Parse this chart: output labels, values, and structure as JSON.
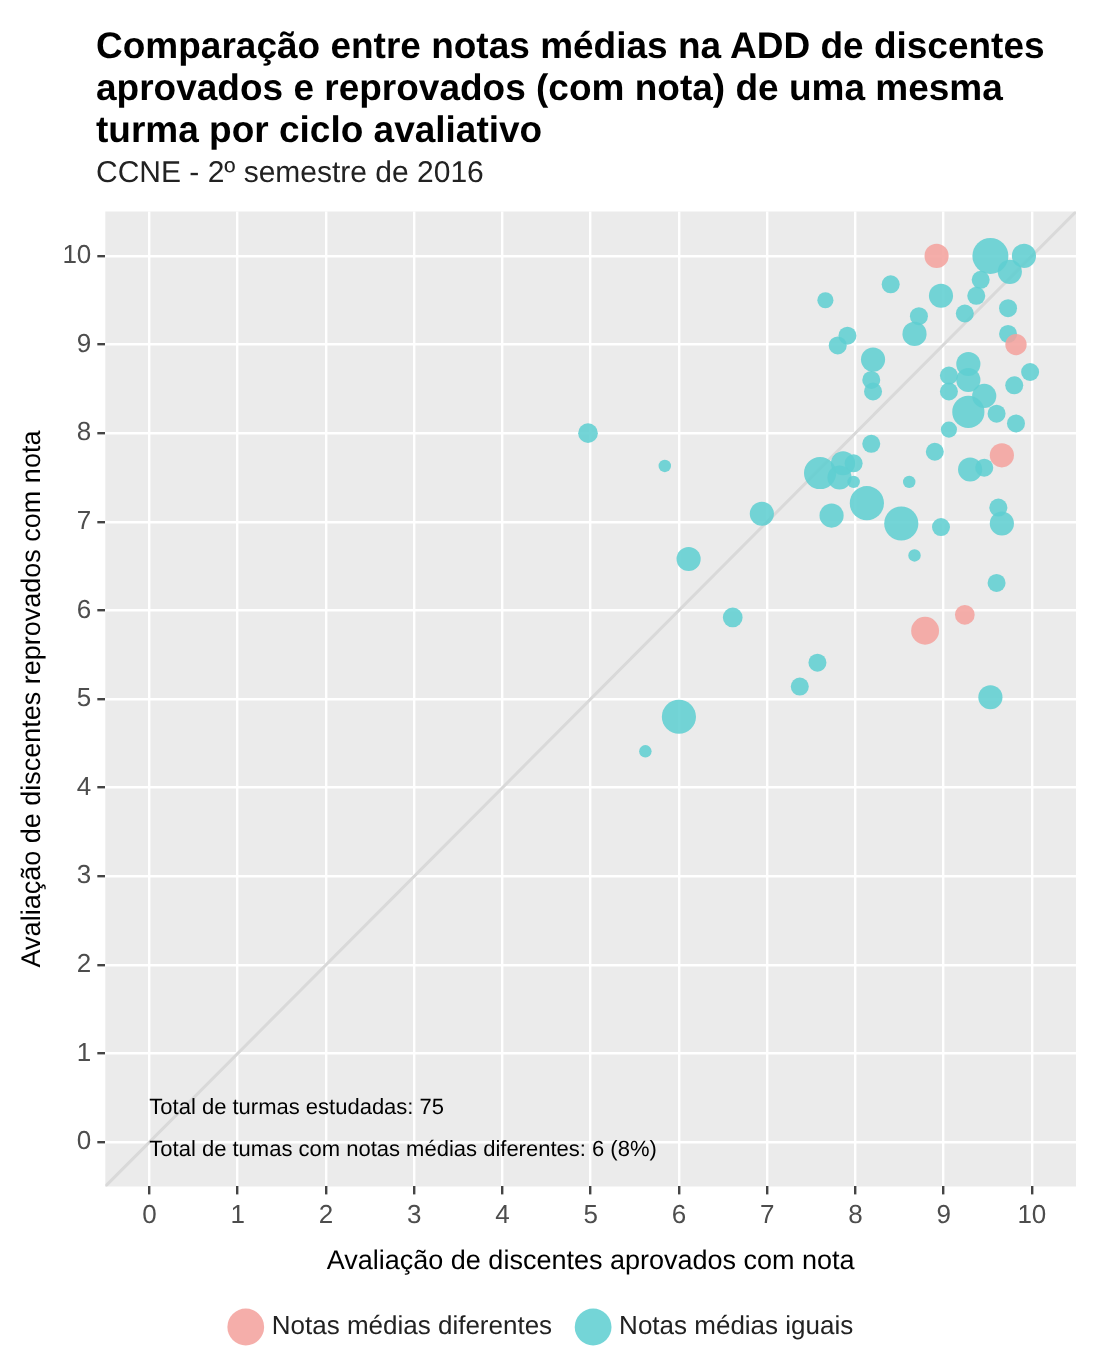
{
  "chart_data": {
    "type": "bubble",
    "title": "Comparação entre notas médias na ADD de discentes aprovados e reprovados (com nota) de uma mesma turma por ciclo avaliativo",
    "subtitle": "CCNE - 2º semestre de 2016",
    "xlabel": "Avaliação de discentes aprovados com nota",
    "ylabel": "Avaliação de discentes reprovados com nota",
    "xlim": [
      -0.5,
      10.5
    ],
    "ylim": [
      -0.5,
      10.5
    ],
    "xticks": [
      0,
      1,
      2,
      3,
      4,
      5,
      6,
      7,
      8,
      9,
      10
    ],
    "yticks": [
      0,
      1,
      2,
      3,
      4,
      5,
      6,
      7,
      8,
      9,
      10
    ],
    "grid": true,
    "legend": "bottom",
    "marker": "circle",
    "annotations": [
      "Total de turmas estudadas: 75",
      "Total de tumas com notas médias diferentes: 6 (8%)"
    ],
    "series": [
      {
        "type": "line",
        "marker": "none",
        "color": "#d9d9d9",
        "x": [
          -0.5,
          10.5
        ],
        "values": [
          -0.5,
          10.5
        ]
      },
      {
        "name": "Notas médias diferentes",
        "color": "#f4a29d",
        "x": [
          8.92,
          9.82,
          9.66,
          8.79,
          9.24
        ],
        "values": [
          10.0,
          9.0,
          7.75,
          5.77,
          5.95
        ],
        "sizes": [
          0.45,
          0.35,
          0.45,
          0.6,
          0.3
        ]
      },
      {
        "name": "Notas médias iguais",
        "color": "#5fcfd1",
        "x": [
          9.53,
          9.91,
          9.75,
          9.42,
          8.97,
          9.37,
          8.4,
          7.66,
          8.72,
          9.24,
          9.73,
          8.67,
          7.91,
          7.8,
          9.73,
          9.98,
          9.28,
          9.28,
          9.06,
          9.06,
          9.8,
          8.2,
          8.18,
          8.2,
          9.46,
          9.28,
          9.6,
          9.82,
          9.06,
          8.18,
          5.84,
          7.6,
          7.86,
          7.98,
          7.82,
          7.98,
          8.9,
          9.3,
          9.46,
          8.61,
          8.13,
          6.94,
          7.73,
          8.52,
          8.97,
          9.66,
          9.62,
          8.67,
          6.11,
          9.6,
          6.61,
          7.57,
          7.37,
          9.53,
          6.0,
          5.62,
          4.97
        ],
        "values": [
          10.0,
          10.0,
          9.82,
          9.73,
          9.55,
          9.55,
          9.68,
          9.5,
          9.32,
          9.35,
          9.41,
          9.12,
          9.1,
          8.99,
          9.12,
          8.69,
          8.78,
          8.6,
          8.65,
          8.47,
          8.54,
          8.83,
          8.6,
          8.47,
          8.42,
          8.24,
          8.22,
          8.11,
          8.04,
          7.88,
          7.63,
          7.55,
          7.66,
          7.66,
          7.5,
          7.45,
          7.79,
          7.59,
          7.61,
          7.45,
          7.21,
          7.09,
          7.07,
          6.98,
          6.94,
          6.98,
          7.16,
          6.62,
          6.58,
          6.31,
          5.92,
          5.41,
          5.14,
          5.02,
          4.8,
          4.41,
          8.0
        ],
        "sizes": [
          1,
          0.45,
          0.45,
          0.25,
          0.45,
          0.25,
          0.25,
          0.2,
          0.25,
          0.25,
          0.25,
          0.45,
          0.25,
          0.25,
          0.25,
          0.25,
          0.45,
          0.45,
          0.25,
          0.25,
          0.25,
          0.45,
          0.25,
          0.25,
          0.45,
          0.8,
          0.25,
          0.25,
          0.2,
          0.25,
          0.12,
          0.8,
          0.45,
          0.25,
          0.45,
          0.12,
          0.25,
          0.45,
          0.25,
          0.12,
          0.9,
          0.45,
          0.45,
          0.9,
          0.25,
          0.45,
          0.25,
          0.12,
          0.45,
          0.25,
          0.3,
          0.25,
          0.25,
          0.45,
          0.9,
          0.12,
          0.3
        ]
      }
    ]
  }
}
